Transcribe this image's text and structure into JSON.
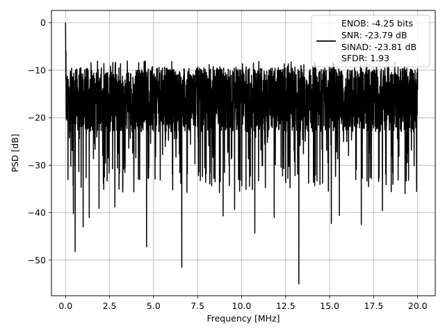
{
  "chart_data": {
    "type": "line",
    "title": "",
    "xlabel": "Frequency [MHz]",
    "ylabel": "PSD [dB]",
    "xlim": [
      -0.8,
      21.0
    ],
    "ylim": [
      -57.5,
      2.6
    ],
    "xticks": [
      0.0,
      2.5,
      5.0,
      7.5,
      10.0,
      12.5,
      15.0,
      17.5,
      20.0
    ],
    "xtick_labels": [
      "0.0",
      "2.5",
      "5.0",
      "7.5",
      "10.0",
      "12.5",
      "15.0",
      "17.5",
      "20.0"
    ],
    "yticks": [
      0,
      -10,
      -20,
      -30,
      -40,
      -50
    ],
    "ytick_labels": [
      "0",
      "−10",
      "−20",
      "−30",
      "−40",
      "−50"
    ],
    "grid": true,
    "legend_position": "top-right",
    "series": [
      {
        "name": "ENOB: -4.25 bits\nSNR: -23.79 dB\nSINAD: -23.81 dB\nSFDR: 1.93",
        "color": "#000000",
        "legend_lines": [
          "ENOB: -4.25 bits",
          "SNR: -23.79 dB",
          "SINAD: -23.81 dB",
          "SFDR: 1.93"
        ],
        "x_range": [
          0.0,
          20.0
        ],
        "band_top": -9.5,
        "band_bottom": -23,
        "peak": {
          "x": 0.0,
          "y": 0.0
        },
        "deep_nulls": [
          {
            "x": 0.55,
            "y": -48.2
          },
          {
            "x": 4.6,
            "y": -47.2
          },
          {
            "x": 6.6,
            "y": -51.5
          },
          {
            "x": 13.25,
            "y": -55.0
          },
          {
            "x": 10.75,
            "y": -44.3
          },
          {
            "x": 1.0,
            "y": -43.0
          },
          {
            "x": 0.45,
            "y": -40.2
          },
          {
            "x": 1.35,
            "y": -41.0
          },
          {
            "x": 1.9,
            "y": -39.1
          },
          {
            "x": 2.8,
            "y": -38.8
          },
          {
            "x": 8.95,
            "y": -40.7
          },
          {
            "x": 9.6,
            "y": -39.3
          },
          {
            "x": 11.85,
            "y": -41.0
          },
          {
            "x": 15.1,
            "y": -42.3
          },
          {
            "x": 15.55,
            "y": -40.6
          },
          {
            "x": 16.8,
            "y": -42.5
          },
          {
            "x": 18.0,
            "y": -39.6
          }
        ]
      }
    ]
  }
}
